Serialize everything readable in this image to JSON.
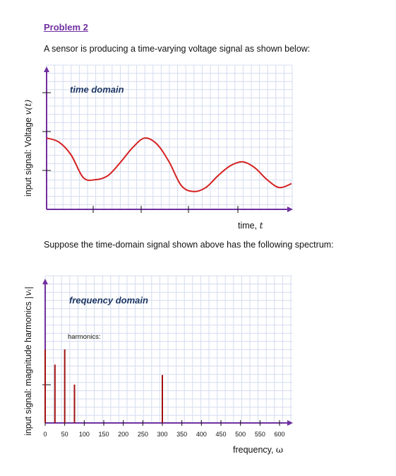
{
  "problem": {
    "title": "Problem 2",
    "intro": "A sensor is producing a time-varying voltage signal as shown below:",
    "spectrum_intro": "Suppose the time-domain signal shown above has the following spectrum:"
  },
  "time_chart": {
    "label": "time domain",
    "y_label_text": "input signal: Voltage ",
    "y_label_math": "v(t)",
    "x_label_text": "time, ",
    "x_label_math": "t",
    "line_color": "#d62020",
    "axis_color": "#7030a0"
  },
  "freq_chart": {
    "label": "frequency domain",
    "harmonics_label": "harmonics:",
    "y_label_text": "input signal: magnitude harmonics ",
    "y_label_math": "|vᵢ|",
    "x_label_text": "frequency, ",
    "x_label_math": "ω",
    "bar_color": "#a01010",
    "axis_color": "#7030a0"
  },
  "chart_data": [
    {
      "type": "line",
      "title": "time domain",
      "xlabel": "time, t",
      "ylabel": "input signal: Voltage v(t)",
      "x": [
        0,
        0.05,
        0.1,
        0.15,
        0.2,
        0.25,
        0.3,
        0.35,
        0.4,
        0.45,
        0.5,
        0.55,
        0.6,
        0.65,
        0.7,
        0.75,
        0.8,
        0.85,
        0.9,
        0.95,
        1.0
      ],
      "values": [
        0.72,
        0.68,
        0.55,
        0.32,
        0.3,
        0.34,
        0.47,
        0.62,
        0.72,
        0.66,
        0.48,
        0.24,
        0.18,
        0.22,
        0.34,
        0.44,
        0.48,
        0.42,
        0.3,
        0.22,
        0.26
      ],
      "grid": true
    },
    {
      "type": "bar",
      "title": "frequency domain",
      "xlabel": "frequency, ω",
      "ylabel": "input signal: magnitude harmonics |vᵢ|",
      "x_ticks": [
        0,
        50,
        100,
        150,
        200,
        250,
        300,
        350,
        400,
        450,
        500,
        550,
        600
      ],
      "x": [
        0,
        25,
        50,
        75,
        300
      ],
      "values": [
        0.92,
        0.73,
        0.92,
        0.48,
        0.6
      ],
      "xlim": [
        0,
        625
      ],
      "grid": true
    }
  ]
}
